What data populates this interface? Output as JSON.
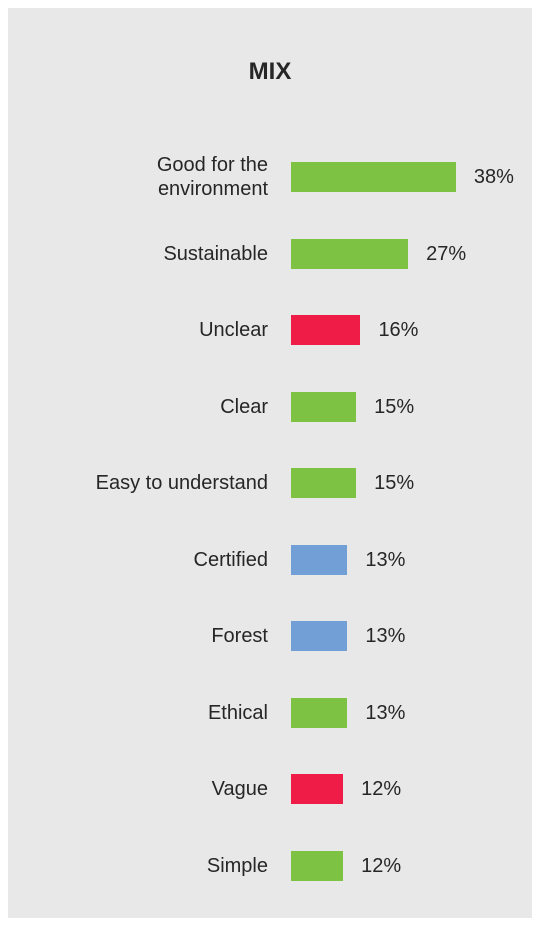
{
  "chart_data": {
    "type": "bar",
    "orientation": "horizontal",
    "title": "MIX",
    "categories": [
      "Good for the\nenvironment",
      "Sustainable",
      "Unclear",
      "Clear",
      "Easy to understand",
      "Certified",
      "Forest",
      "Ethical",
      "Vague",
      "Simple"
    ],
    "values": [
      38,
      27,
      16,
      15,
      15,
      13,
      13,
      13,
      12,
      12
    ],
    "value_labels": [
      "38%",
      "27%",
      "16%",
      "15%",
      "15%",
      "13%",
      "13%",
      "13%",
      "12%",
      "12%"
    ],
    "colors": [
      "#7dc242",
      "#7dc242",
      "#ee1c47",
      "#7dc242",
      "#7dc242",
      "#729fd6",
      "#729fd6",
      "#7dc242",
      "#ee1c47",
      "#7dc242"
    ]
  }
}
